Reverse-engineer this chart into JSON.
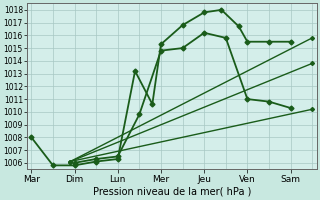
{
  "xlabel": "Pression niveau de la mer( hPa )",
  "background_color": "#cce8e8",
  "plot_bg": "#d0ecec",
  "grid_color": "#b0c8c8",
  "line_color_dark": "#1a5c1a",
  "line_color_light": "#2a7a2a",
  "ylim": [
    1005.5,
    1018.5
  ],
  "yticks": [
    1006,
    1007,
    1008,
    1009,
    1010,
    1011,
    1012,
    1013,
    1014,
    1015,
    1016,
    1017,
    1018
  ],
  "x_labels": [
    "Mar",
    "Dim",
    "Lun",
    "Mer",
    "Jeu",
    "Ven",
    "Sam"
  ],
  "x_positions": [
    0,
    1,
    2,
    3,
    4,
    5,
    6
  ],
  "xlim": [
    -0.1,
    6.6
  ],
  "line1": {
    "x": [
      0,
      0.5,
      1,
      1.5,
      2,
      2.4,
      2.8,
      3.0,
      3.5,
      4.0,
      4.4,
      4.8,
      5.0,
      5.5,
      6.0
    ],
    "y": [
      1008.0,
      1005.8,
      1005.8,
      1006.1,
      1006.3,
      1013.2,
      1010.6,
      1015.3,
      1016.8,
      1017.8,
      1018.0,
      1016.7,
      1015.5,
      1015.5,
      1015.5
    ],
    "style": "-",
    "marker": "D",
    "markersize": 2.5,
    "linewidth": 1.3
  },
  "line2": {
    "x": [
      1,
      1.5,
      2.0,
      2.5,
      3.0,
      3.5,
      4.0,
      4.5,
      5.0,
      5.5,
      6.0
    ],
    "y": [
      1006.0,
      1006.3,
      1006.5,
      1009.8,
      1014.8,
      1015.0,
      1016.2,
      1015.8,
      1011.0,
      1010.8,
      1010.3
    ],
    "style": "-",
    "marker": "D",
    "markersize": 2.5,
    "linewidth": 1.3
  },
  "line3": {
    "x": [
      0.9,
      6.5
    ],
    "y": [
      1006.1,
      1015.8
    ],
    "style": "-",
    "marker": "D",
    "markersize": 2.0,
    "linewidth": 1.0
  },
  "line4": {
    "x": [
      0.9,
      6.5
    ],
    "y": [
      1006.1,
      1013.8
    ],
    "style": "-",
    "marker": "D",
    "markersize": 2.0,
    "linewidth": 1.0
  },
  "line5": {
    "x": [
      0.9,
      6.5
    ],
    "y": [
      1006.1,
      1010.2
    ],
    "style": "-",
    "marker": "D",
    "markersize": 2.0,
    "linewidth": 1.0
  }
}
